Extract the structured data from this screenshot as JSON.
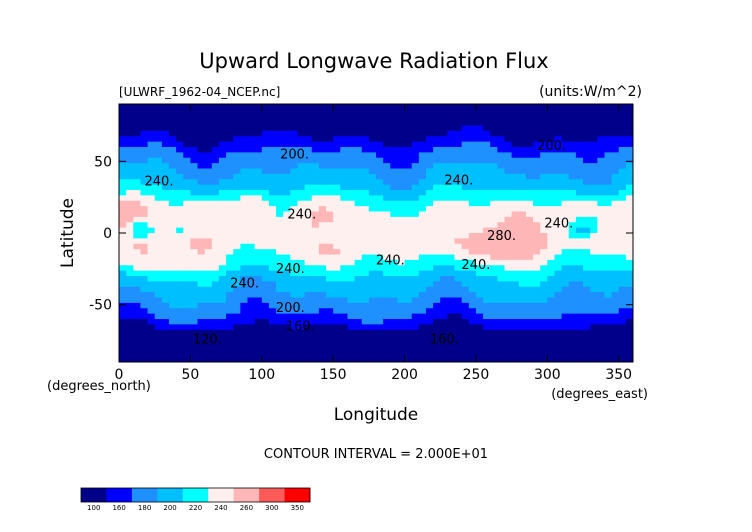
{
  "chart_data": {
    "type": "heatmap",
    "title": "Upward Longwave Radiation Flux",
    "file_label": "[ULWRF_1962-04_NCEP.nc]",
    "units_label": "(units:W/m^2)",
    "xlabel": "Longitude",
    "ylabel": "Latitude",
    "x_units_label": "(degrees_east)",
    "y_units_label": "(degrees_north)",
    "xlim": [
      0,
      360
    ],
    "ylim": [
      -90,
      90
    ],
    "x_ticks": [
      0,
      50,
      100,
      150,
      200,
      250,
      300,
      350
    ],
    "y_ticks": [
      -50,
      0,
      50
    ],
    "contour_interval_text": "CONTOUR INTERVAL = 2.000E+01",
    "colorbar": {
      "levels": [
        100,
        160,
        180,
        200,
        220,
        240,
        260,
        300,
        350
      ],
      "colors": [
        "#00008b",
        "#0000ff",
        "#1e90ff",
        "#00bfff",
        "#00ffff",
        "#fff0f0",
        "#ffb6b6",
        "#ff5a5a",
        "#ff0000"
      ]
    },
    "contour_labels": [
      {
        "text": "200.",
        "lon": 123,
        "lat": 52
      },
      {
        "text": "200.",
        "lon": 303,
        "lat": 58
      },
      {
        "text": "240.",
        "lon": 28,
        "lat": 33
      },
      {
        "text": "240.",
        "lon": 238,
        "lat": 34
      },
      {
        "text": "240.",
        "lon": 128,
        "lat": 10
      },
      {
        "text": "240.",
        "lon": 308,
        "lat": 4
      },
      {
        "text": "280.",
        "lon": 268,
        "lat": -5
      },
      {
        "text": "240.",
        "lon": 190,
        "lat": -22
      },
      {
        "text": "240.",
        "lon": 250,
        "lat": -25
      },
      {
        "text": "240.",
        "lon": 120,
        "lat": -28
      },
      {
        "text": "240.",
        "lon": 88,
        "lat": -38
      },
      {
        "text": "200.",
        "lon": 120,
        "lat": -55
      },
      {
        "text": "160.",
        "lon": 127,
        "lat": -68
      },
      {
        "text": "120.",
        "lon": 62,
        "lat": -77
      },
      {
        "text": "160.",
        "lon": 228,
        "lat": -77
      }
    ],
    "grid": false,
    "legend": "bottom-left"
  }
}
